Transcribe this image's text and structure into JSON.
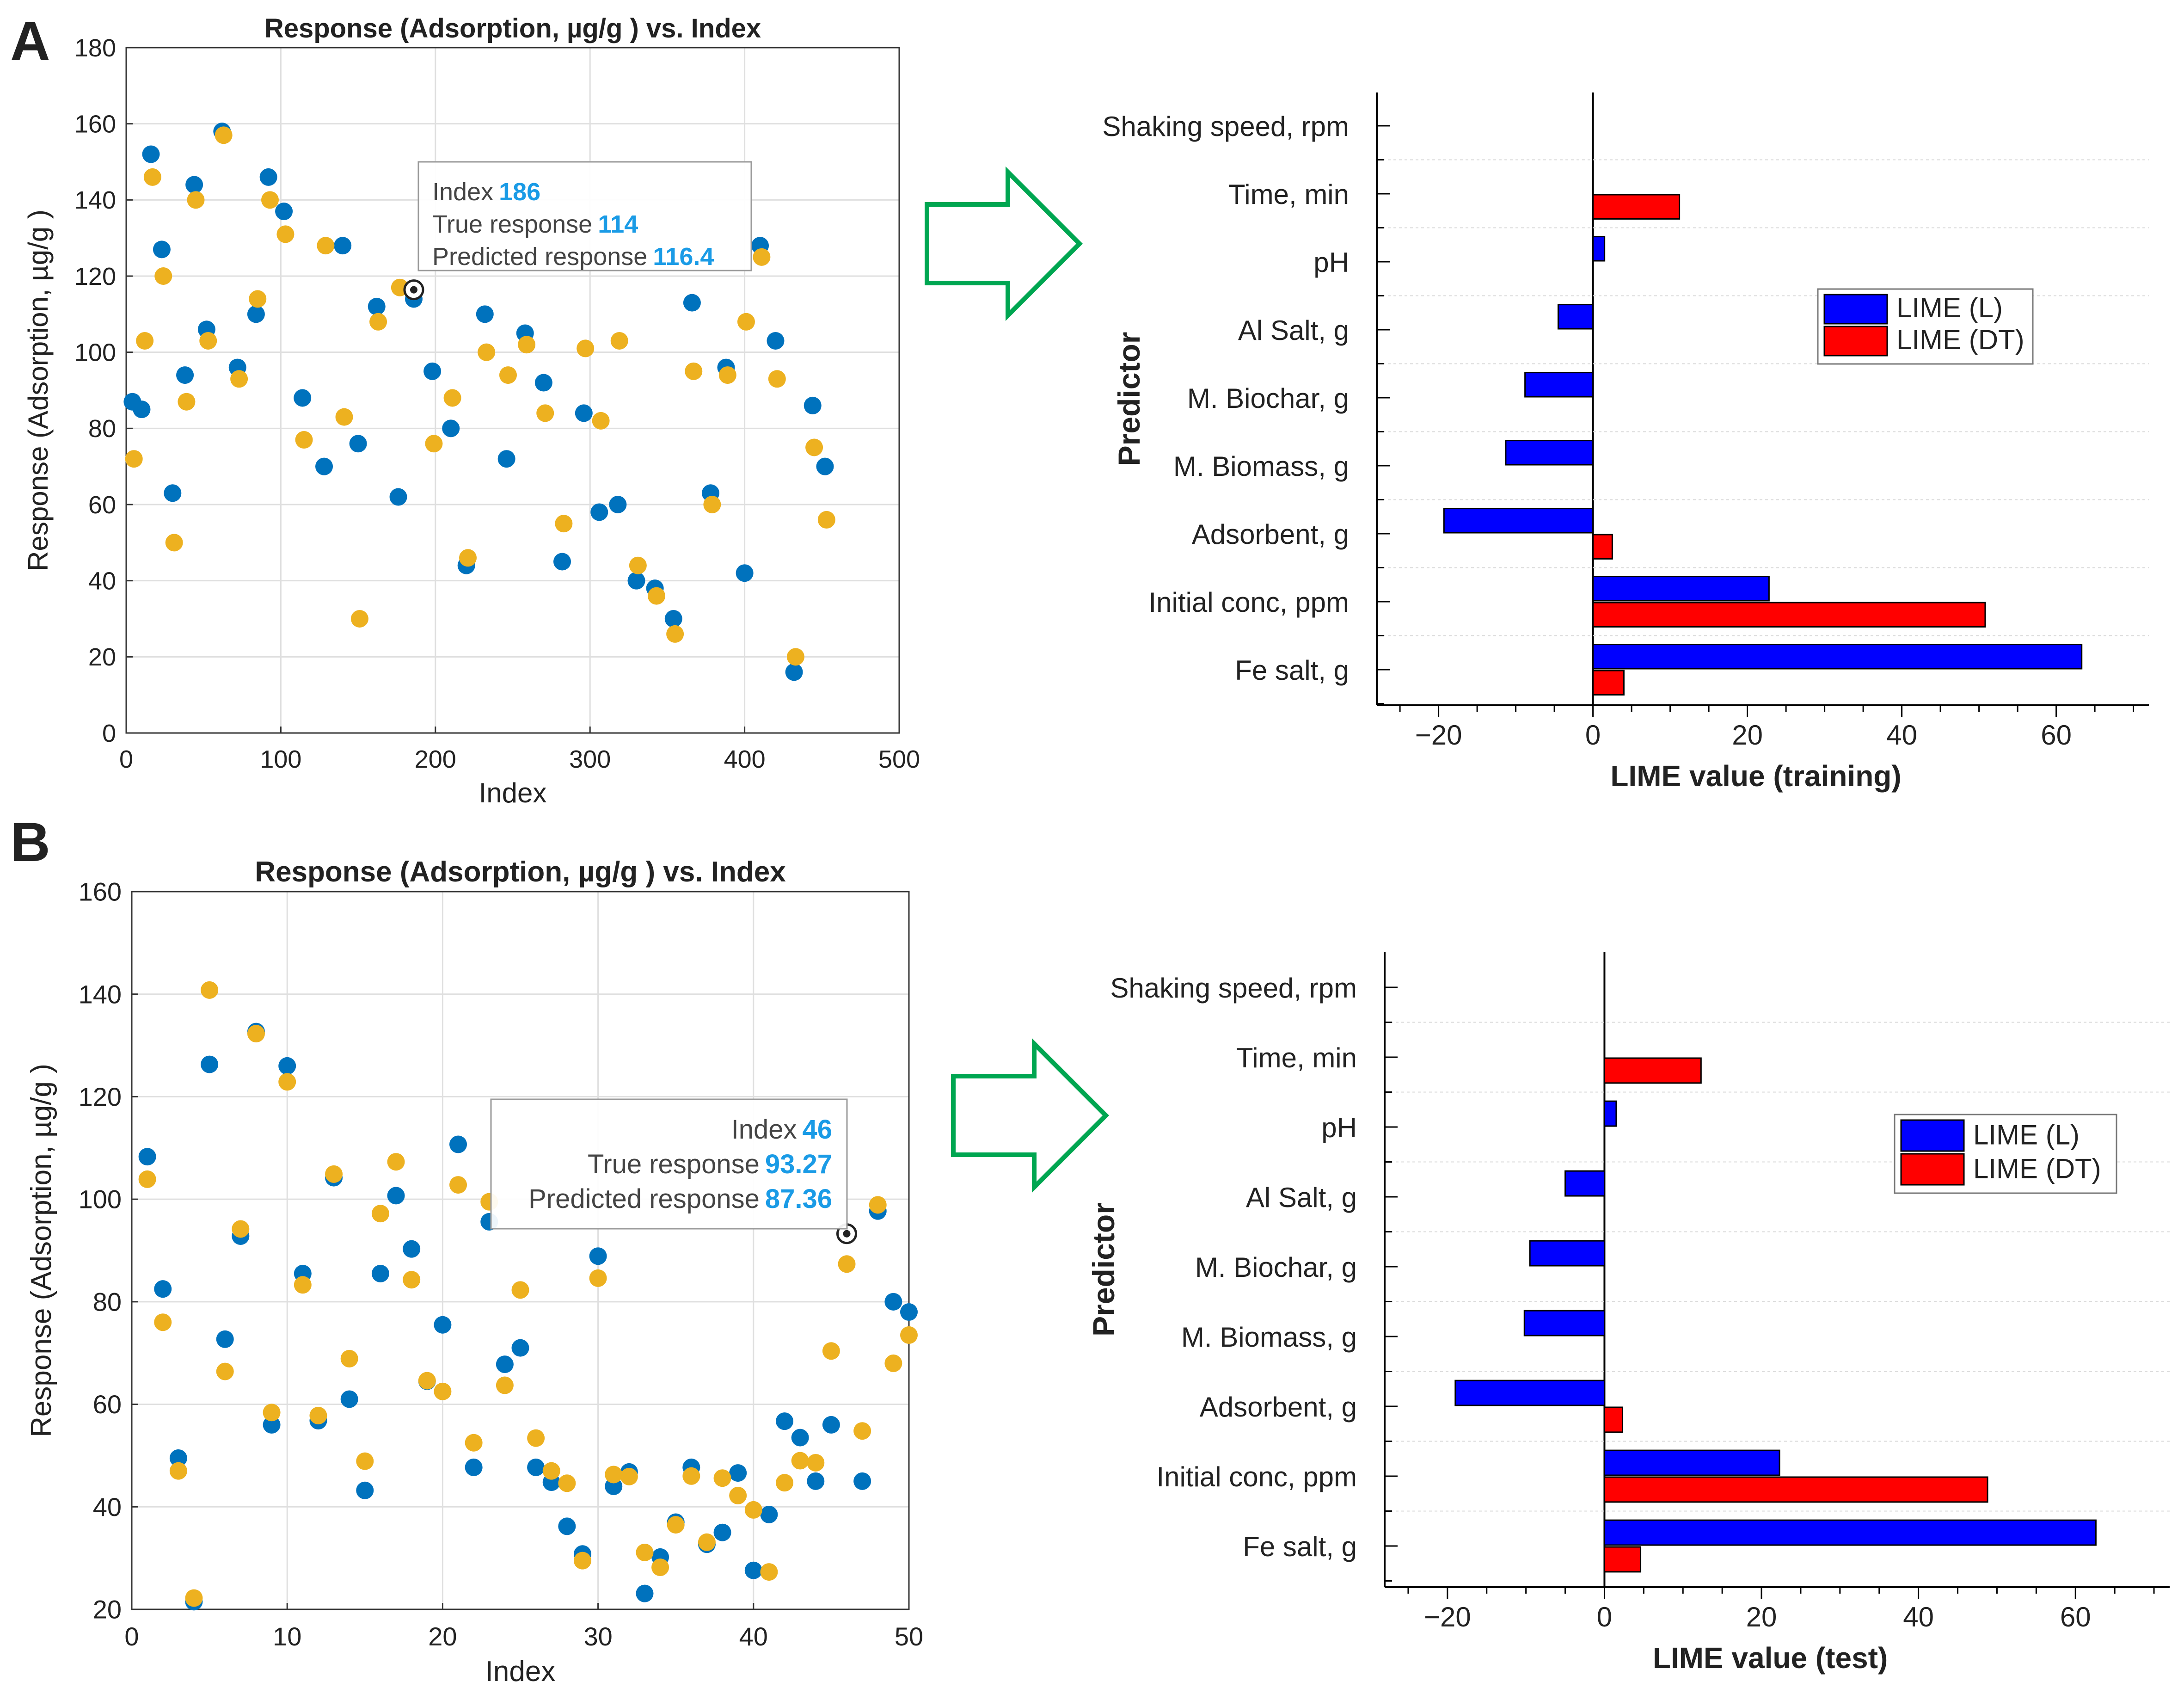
{
  "panel_labels": [
    "A",
    "B"
  ],
  "colors": {
    "true_response": "#0072BD",
    "predicted_response": "#EDB120",
    "lime_l": "#0000FF",
    "lime_dt": "#FF0000",
    "arrow": "#00A651",
    "grid": "#DFDFDF"
  },
  "chart_data": [
    {
      "type": "scatter",
      "panel": "A",
      "title": "Response (Adsorption, µg/g ) vs. Index",
      "xlabel": "Index",
      "ylabel": "Response (Adsorption, µg/g )",
      "xlim": [
        0,
        500
      ],
      "ylim": [
        0,
        180
      ],
      "xticks": [
        0,
        100,
        200,
        300,
        400,
        500
      ],
      "yticks": [
        0,
        20,
        40,
        60,
        80,
        100,
        120,
        140,
        160,
        180
      ],
      "grid": true,
      "series": [
        {
          "color": "#0072BD",
          "x": [
            4,
            10,
            16,
            23,
            30,
            38,
            44,
            52,
            62,
            72,
            84,
            92,
            102,
            114,
            128,
            140,
            150,
            162,
            176,
            186,
            198,
            210,
            220,
            232,
            246,
            258,
            270,
            282,
            296,
            306,
            318,
            330,
            342,
            354,
            366,
            378,
            388,
            400,
            410,
            420,
            432,
            444,
            452
          ],
          "y": [
            87,
            85,
            152,
            127,
            63,
            94,
            144,
            106,
            158,
            96,
            110,
            146,
            137,
            88,
            70,
            128,
            76,
            112,
            62,
            114,
            95,
            80,
            44,
            110,
            72,
            105,
            92,
            45,
            84,
            58,
            60,
            40,
            38,
            30,
            113,
            63,
            96,
            42,
            128,
            103,
            16,
            86,
            70
          ]
        },
        {
          "color": "#EDB120",
          "x": [
            5,
            12,
            17,
            24,
            31,
            39,
            45,
            53,
            63,
            73,
            85,
            93,
            103,
            115,
            129,
            141,
            151,
            163,
            177,
            186,
            199,
            211,
            221,
            233,
            247,
            259,
            271,
            283,
            297,
            307,
            319,
            331,
            343,
            355,
            367,
            379,
            389,
            401,
            411,
            421,
            433,
            445,
            453
          ],
          "y": [
            72,
            103,
            146,
            120,
            50,
            87,
            140,
            103,
            157,
            93,
            114,
            140,
            131,
            77,
            128,
            83,
            30,
            108,
            117,
            116,
            76,
            88,
            46,
            100,
            94,
            102,
            84,
            55,
            101,
            82,
            103,
            44,
            36,
            26,
            95,
            60,
            94,
            108,
            125,
            93,
            20,
            75,
            56
          ]
        }
      ]
    },
    {
      "type": "scatter",
      "panel": "B",
      "title": "Response (Adsorption, µg/g ) vs. Index",
      "xlabel": "Index",
      "ylabel": "Response (Adsorption, µg/g )",
      "xlim": [
        0,
        50
      ],
      "ylim": [
        20,
        160
      ],
      "xticks": [
        0,
        10,
        20,
        30,
        40,
        50
      ],
      "yticks": [
        20,
        40,
        60,
        80,
        100,
        120,
        140,
        160
      ],
      "grid": true,
      "series": [
        {
          "color": "#0072BD",
          "x": [
            1,
            2,
            3,
            4,
            5,
            6,
            7,
            8,
            9,
            10,
            11,
            12,
            13,
            14,
            15,
            16,
            17,
            18,
            19,
            20,
            21,
            22,
            23,
            24,
            25,
            26,
            27,
            28,
            29,
            30,
            31,
            32,
            33,
            34,
            35,
            36,
            37,
            38,
            39,
            40,
            41,
            42,
            43,
            44,
            45,
            46,
            47,
            48,
            49,
            50
          ],
          "y": [
            108.3,
            82.5,
            49.5,
            21.5,
            126.3,
            72.7,
            92.8,
            132.7,
            56,
            126,
            85.5,
            56.8,
            104.2,
            61,
            43.2,
            85.5,
            100.7,
            90.3,
            64.5,
            75.5,
            110.7,
            47.7,
            95.6,
            67.8,
            71,
            47.7,
            44.8,
            36.2,
            30.8,
            88.9,
            44,
            46.8,
            23.1,
            30.2,
            37,
            47.7,
            32.7,
            35,
            46.6,
            27.6,
            38.5,
            56.7,
            53.5,
            45,
            56,
            93.27,
            45,
            97.7,
            80,
            78
          ]
        },
        {
          "color": "#EDB120",
          "x": [
            1,
            2,
            3,
            4,
            5,
            6,
            7,
            8,
            9,
            10,
            11,
            12,
            13,
            14,
            15,
            16,
            17,
            18,
            19,
            20,
            21,
            22,
            23,
            24,
            25,
            26,
            27,
            28,
            29,
            30,
            31,
            32,
            33,
            34,
            35,
            36,
            37,
            38,
            39,
            40,
            41,
            42,
            43,
            44,
            45,
            46,
            47,
            48,
            49,
            50
          ],
          "y": [
            103.9,
            76,
            47,
            22.2,
            140.8,
            66.4,
            94.2,
            132.3,
            58.4,
            122.9,
            83.3,
            57.8,
            104.9,
            68.9,
            48.9,
            97.2,
            107.3,
            84.3,
            64.6,
            62.5,
            102.8,
            52.5,
            99.5,
            63.7,
            82.3,
            53.4,
            47,
            44.6,
            29.5,
            84.6,
            46.3,
            45.9,
            31.1,
            28.2,
            36.5,
            46,
            33.1,
            45.6,
            42.2,
            39.4,
            27.3,
            44.7,
            49,
            48.6,
            70.4,
            87.36,
            54.8,
            98.9,
            68,
            73.5
          ]
        }
      ],
      "tooltip": {
        "index": 46,
        "true_response": 93.27,
        "predicted_response": 87.36
      }
    },
    {
      "type": "bar",
      "orientation": "horizontal",
      "panel": "A",
      "xlabel": "LIME value (training)",
      "ylabel": "Predictor",
      "categories": [
        "Shaking speed, rpm",
        "Time, min",
        "pH",
        "Al Salt, g",
        "M. Biochar, g",
        "M. Biomass, g",
        "Adsorbent, g",
        "Initial conc, ppm",
        "Fe salt, g"
      ],
      "xlim": [
        -28,
        72
      ],
      "xticks": [
        -20,
        0,
        20,
        40,
        60
      ],
      "legend_position": "right",
      "series": [
        {
          "name": "LIME  (L)",
          "color": "#0000FF",
          "values": [
            0,
            0,
            1.5,
            -4.5,
            -8.8,
            -11.3,
            -19.3,
            22.8,
            63.3
          ]
        },
        {
          "name": "LIME (DT)",
          "color": "#FF0000",
          "values": [
            0,
            11.2,
            0,
            0,
            0,
            0,
            2.5,
            50.8,
            4
          ]
        }
      ]
    },
    {
      "type": "bar",
      "orientation": "horizontal",
      "panel": "B",
      "xlabel": "LIME value (test)",
      "ylabel": "Predictor",
      "categories": [
        "Shaking speed, rpm",
        "Time, min",
        "pH",
        "Al Salt, g",
        "M. Biochar, g",
        "M. Biomass, g",
        "Adsorbent, g",
        "Initial conc, ppm",
        "Fe salt, g"
      ],
      "xlim": [
        -28,
        72
      ],
      "xticks": [
        -20,
        0,
        20,
        40,
        60
      ],
      "legend_position": "right",
      "series": [
        {
          "name": "LIME  (L)",
          "color": "#0000FF",
          "values": [
            0,
            0,
            1.5,
            -5,
            -9.5,
            -10.2,
            -19,
            22.3,
            62.6
          ]
        },
        {
          "name": "LIME (DT)",
          "color": "#FF0000",
          "values": [
            0,
            12.3,
            0,
            0,
            0,
            0,
            2.3,
            48.8,
            4.6
          ]
        }
      ]
    }
  ],
  "tooltips": [
    {
      "index_label": "Index",
      "index_value": "186",
      "true_label": "True response",
      "true_value": "114",
      "pred_label": "Predicted response",
      "pred_value": "116.4"
    },
    {
      "index_label": "Index",
      "index_value": "46",
      "true_label": "True response",
      "true_value": "93.27",
      "pred_label": "Predicted response",
      "pred_value": "87.36"
    }
  ]
}
